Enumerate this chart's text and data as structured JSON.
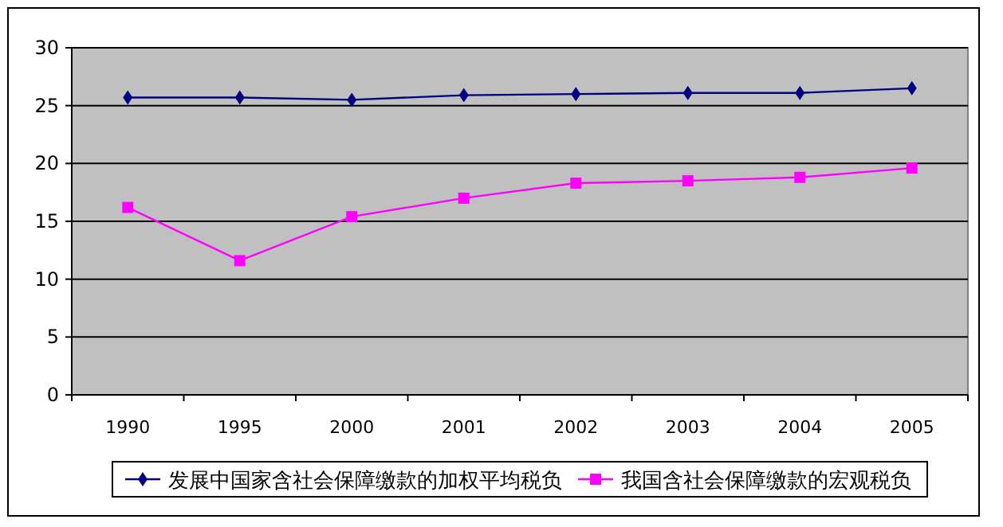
{
  "chart_data": {
    "type": "line",
    "categories": [
      "1990",
      "1995",
      "2000",
      "2001",
      "2002",
      "2003",
      "2004",
      "2005"
    ],
    "series": [
      {
        "name": "发展中国家含社会保障缴款的加权平均税负",
        "color": "#000080",
        "marker": "diamond",
        "values": [
          25.7,
          25.7,
          25.5,
          25.9,
          26.0,
          26.1,
          26.1,
          26.5
        ]
      },
      {
        "name": "我国含社会保障缴款的宏观税负",
        "color": "#ff00ff",
        "marker": "square",
        "values": [
          16.2,
          11.6,
          15.4,
          17.0,
          18.3,
          18.5,
          18.8,
          19.6
        ]
      }
    ],
    "ylim": [
      0,
      30
    ],
    "yticks": [
      0,
      5,
      10,
      15,
      20,
      25,
      30
    ],
    "grid": "y",
    "legend": "bottom",
    "line_style": "solid"
  }
}
